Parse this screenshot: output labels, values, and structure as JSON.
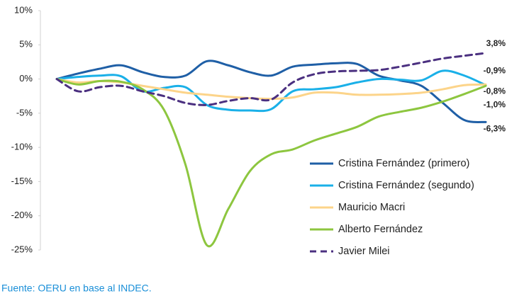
{
  "chart_data": {
    "type": "line",
    "categories": [
      null,
      null,
      null,
      null,
      null,
      null,
      null,
      null,
      null,
      null,
      null,
      null,
      null,
      null,
      null,
      null,
      null,
      null,
      null,
      null,
      null
    ],
    "series": [
      {
        "name": "Cristina Fernández (primero)",
        "color": "#1f5fa6",
        "dash": false,
        "values": [
          0,
          0.8,
          1.5,
          2.0,
          1.0,
          0.3,
          0.5,
          2.6,
          2.0,
          1.0,
          0.5,
          1.8,
          2.1,
          2.3,
          2.2,
          0.5,
          -0.2,
          -1.0,
          -3.5,
          -6.0,
          -6.3
        ],
        "value_labels": [
          null,
          null,
          null,
          null,
          null,
          null,
          null,
          null,
          null,
          null,
          null,
          null,
          null,
          null,
          null,
          null,
          null,
          null,
          null,
          null,
          "-6,3%"
        ]
      },
      {
        "name": "Cristina Fernández (segundo)",
        "color": "#1ab0e8",
        "dash": false,
        "values": [
          0,
          0.3,
          0.5,
          0.4,
          -1.8,
          -1.3,
          -1.2,
          -3.8,
          -4.5,
          -4.6,
          -4.4,
          -1.8,
          -1.5,
          -1.2,
          -0.5,
          0,
          -0.1,
          -0.2,
          1.2,
          0.5,
          -0.9
        ],
        "value_labels": [
          null,
          null,
          null,
          null,
          null,
          null,
          null,
          null,
          null,
          null,
          null,
          null,
          null,
          null,
          null,
          null,
          null,
          null,
          null,
          null,
          "-0,9%"
        ]
      },
      {
        "name": "Mauricio Macri",
        "color": "#fcd48a",
        "dash": false,
        "values": [
          0,
          -0.5,
          -0.3,
          -0.5,
          -1.0,
          -1.5,
          -2.0,
          -2.3,
          -2.6,
          -2.8,
          -2.9,
          -2.7,
          -2.0,
          -2.0,
          -2.3,
          -2.3,
          -2.2,
          -2.0,
          -1.5,
          -0.9,
          -0.8
        ],
        "value_labels": [
          null,
          null,
          null,
          null,
          null,
          null,
          null,
          null,
          null,
          null,
          null,
          null,
          null,
          null,
          null,
          null,
          null,
          null,
          null,
          null,
          "-0,8%"
        ]
      },
      {
        "name": "Alberto Fernández",
        "color": "#8dc63f",
        "dash": false,
        "values": [
          0,
          -0.8,
          -0.3,
          -0.4,
          -1.5,
          -4.5,
          -12.5,
          -24.3,
          -19,
          -13.5,
          -11,
          -10.3,
          -9,
          -8,
          -7,
          -5.5,
          -4.8,
          -4.2,
          -3.3,
          -2.2,
          -1.0
        ],
        "value_labels": [
          null,
          null,
          null,
          null,
          null,
          null,
          null,
          null,
          null,
          null,
          null,
          null,
          null,
          null,
          null,
          null,
          null,
          null,
          null,
          null,
          "-1,0%"
        ]
      },
      {
        "name": "Javier Milei",
        "color": "#4b3080",
        "dash": true,
        "values": [
          0,
          -1.8,
          -1.2,
          -1.0,
          -1.8,
          -2.5,
          -3.5,
          -3.8,
          -3.2,
          -2.8,
          -3.0,
          -0.5,
          0.7,
          1.1,
          1.2,
          1.3,
          1.8,
          2.4,
          3.0,
          3.4,
          3.8
        ],
        "value_labels": [
          null,
          null,
          null,
          null,
          null,
          null,
          null,
          null,
          null,
          null,
          null,
          null,
          null,
          null,
          null,
          null,
          null,
          null,
          null,
          null,
          "3,8%"
        ]
      }
    ],
    "ylim": [
      -25,
      10
    ],
    "yticks": [
      {
        "value": -25,
        "label": "-25%"
      },
      {
        "value": -20,
        "label": "-20%"
      },
      {
        "value": -15,
        "label": "-15%"
      },
      {
        "value": -10,
        "label": "-10%"
      },
      {
        "value": -5,
        "label": "-5%"
      },
      {
        "value": 0,
        "label": "0%"
      },
      {
        "value": 5,
        "label": "5%"
      },
      {
        "value": 10,
        "label": "10%"
      }
    ],
    "legend": "lower right",
    "source": "Fuente: OERU en base al INDEC."
  }
}
